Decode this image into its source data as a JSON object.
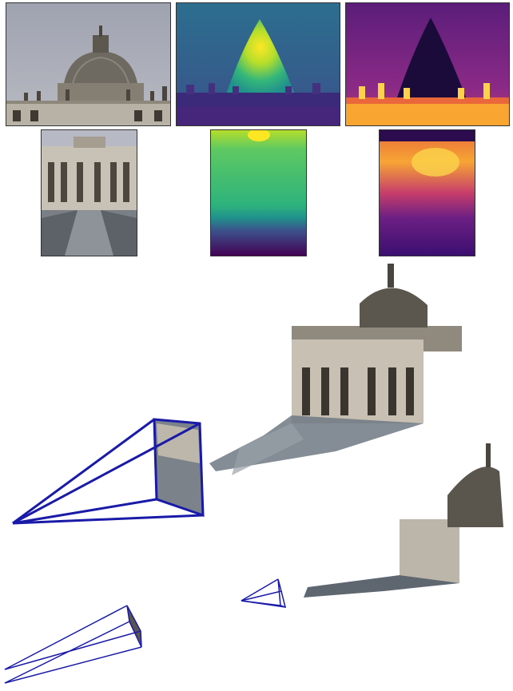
{
  "figure": {
    "rows": [
      {
        "row": "top",
        "panels": [
          {
            "kind": "rgb-image",
            "subject": "dome"
          },
          {
            "kind": "depth-map",
            "colormap": "viridis"
          },
          {
            "kind": "uncertainty-map",
            "colormap": "inferno"
          }
        ]
      },
      {
        "row": "middle",
        "panels": [
          {
            "kind": "rgb-image",
            "subject": "facade"
          },
          {
            "kind": "depth-map",
            "colormap": "viridis"
          },
          {
            "kind": "uncertainty-map",
            "colormap": "inferno"
          }
        ]
      }
    ],
    "scene": {
      "kind": "3d-point-cloud-reconstruction",
      "camera_frustum_color": "#1a1aa8",
      "cameras": 3
    }
  },
  "colors": {
    "sky": "#a9adb9",
    "stone": "#c9c3b8",
    "frustum": "#1a1aa8",
    "viridis_low": "#440154",
    "viridis_mid": "#21918c",
    "viridis_high": "#fde725",
    "inferno_low": "#3b0f70",
    "inferno_mid": "#b73779",
    "inferno_high": "#fcfdbf"
  }
}
